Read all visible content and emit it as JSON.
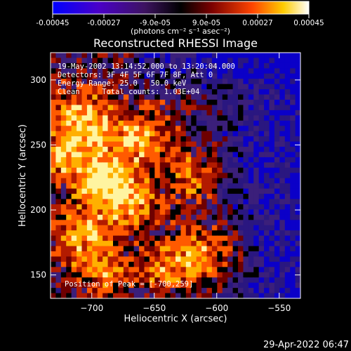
{
  "colorbar": {
    "tick_labels": [
      "-0.00045",
      "-0.00027",
      "-9.0e-05",
      "9.0e-05",
      "0.00027",
      "0.00045"
    ],
    "tick_values": [
      -0.00045,
      -0.00027,
      -9e-05,
      9e-05,
      0.00027,
      0.00045
    ],
    "range": [
      -0.00045,
      0.00045
    ],
    "units_label": "(photons cm⁻² s⁻¹ asec⁻²)",
    "colors": [
      "#0000ff",
      "#5500cc",
      "#000000",
      "#8b0000",
      "#ff4500",
      "#ffd700",
      "#ffffff"
    ]
  },
  "chart_data": {
    "type": "heatmap",
    "title": "Reconstructed RHESSI Image",
    "xlabel": "Heliocentric X (arcsec)",
    "ylabel": "Heliocentric Y (arcsec)",
    "xlim": [
      -733,
      -533
    ],
    "ylim": [
      132,
      321
    ],
    "x_ticks": [
      -700,
      -650,
      -600,
      -550
    ],
    "x_tick_labels": [
      "−700",
      "−650",
      "−600",
      "−550"
    ],
    "y_ticks": [
      150,
      200,
      250,
      300
    ],
    "y_tick_labels": [
      "150",
      "200",
      "250",
      "300"
    ],
    "peak": [
      -700,
      259
    ],
    "annotations": [
      "19-May-2002 13:14:52.000 to 13:20:04.000",
      "Detectors: 3F 4F 5F 6F 7F 8F, Att 0",
      "Energy Range: 25.0 - 50.0 keV",
      "Clean     Total counts: 1.03E+04",
      "Position of Peak = [-700,259]"
    ],
    "palette": [
      "#0b00c8",
      "#2a1780",
      "#3b1f7a",
      "#000000",
      "#6e0000",
      "#b31b00",
      "#ff5a00",
      "#ffb000",
      "#fff4a0"
    ]
  },
  "footer": {
    "timestamp": "29-Apr-2022 06:47"
  }
}
